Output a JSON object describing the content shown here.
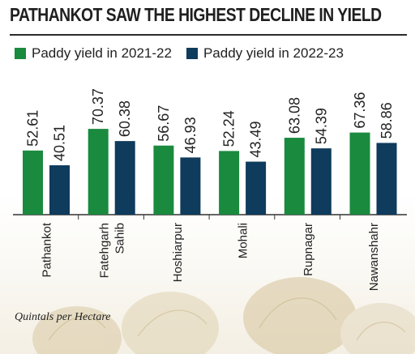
{
  "header": {
    "title": "PATHANKOT SAW THE HIGHEST DECLINE IN YIELD"
  },
  "footnote": {
    "unit": "Quintals per Hectare"
  },
  "colors": {
    "series_2021_22": "#1a8a3e",
    "series_2022_23": "#0f3b5c",
    "axis": "#333333",
    "text": "#222222"
  },
  "chart_data": {
    "type": "bar",
    "title": "PATHANKOT SAW THE HIGHEST DECLINE IN YIELD",
    "categories": [
      "Pathankot",
      "Fatehgarh Sahib",
      "Hoshiarpur",
      "Mohali",
      "Rupnagar",
      "Nawanshahr"
    ],
    "series": [
      {
        "name": "Paddy yield in 2021-22",
        "values": [
          52.61,
          70.37,
          56.67,
          52.24,
          63.08,
          67.36
        ]
      },
      {
        "name": "Paddy yield in 2022-23",
        "values": [
          40.51,
          60.38,
          46.93,
          43.49,
          54.39,
          58.86
        ]
      }
    ],
    "ylim": [
      0,
      100
    ],
    "grid": false,
    "legend": "top-left",
    "xlabel": "",
    "ylabel": ""
  }
}
